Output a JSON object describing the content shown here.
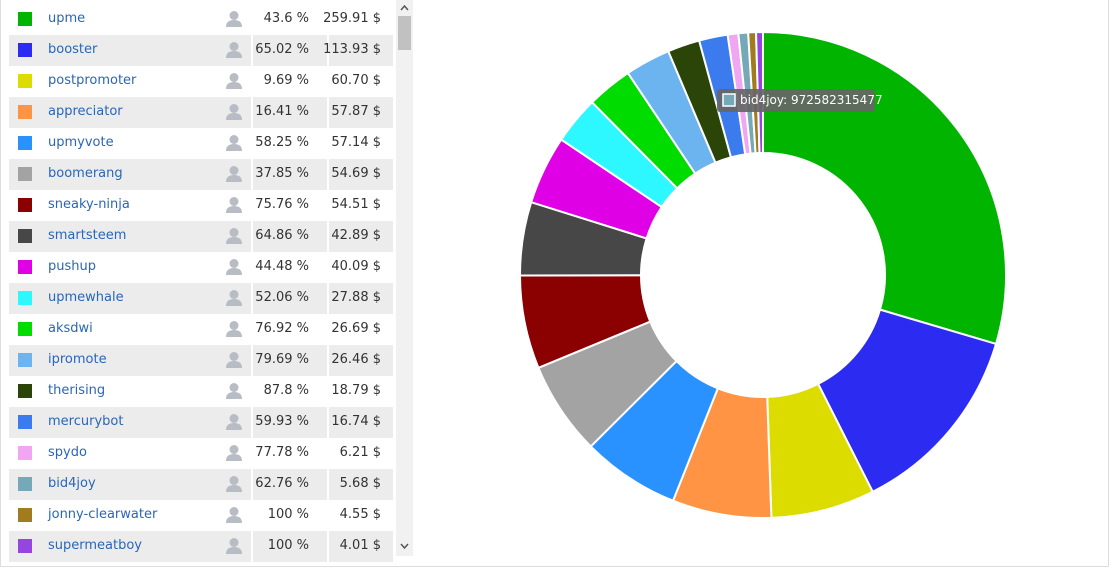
{
  "table": {
    "rows": [
      {
        "name": "upme",
        "color": "#00b400",
        "percent": "43.6 %",
        "amount": {
          "value": 259.91,
          "label": "259.91 $"
        }
      },
      {
        "name": "booster",
        "color": "#2b2bf2",
        "percent": "65.02 %",
        "amount": {
          "value": 113.93,
          "label": "113.93 $"
        }
      },
      {
        "name": "postpromoter",
        "color": "#dcdc00",
        "percent": "9.69 %",
        "amount": {
          "value": 60.7,
          "label": "60.70 $"
        }
      },
      {
        "name": "appreciator",
        "color": "#ff9544",
        "percent": "16.41 %",
        "amount": {
          "value": 57.87,
          "label": "57.87 $"
        }
      },
      {
        "name": "upmyvote",
        "color": "#2a92ff",
        "percent": "58.25 %",
        "amount": {
          "value": 57.14,
          "label": "57.14 $"
        }
      },
      {
        "name": "boomerang",
        "color": "#a3a3a3",
        "percent": "37.85 %",
        "amount": {
          "value": 54.69,
          "label": "54.69 $"
        }
      },
      {
        "name": "sneaky-ninja",
        "color": "#8b0000",
        "percent": "75.76 %",
        "amount": {
          "value": 54.51,
          "label": "54.51 $"
        }
      },
      {
        "name": "smartsteem",
        "color": "#474747",
        "percent": "64.86 %",
        "amount": {
          "value": 42.89,
          "label": "42.89 $"
        }
      },
      {
        "name": "pushup",
        "color": "#e000e6",
        "percent": "44.48 %",
        "amount": {
          "value": 40.09,
          "label": "40.09 $"
        }
      },
      {
        "name": "upmewhale",
        "color": "#2ef8ff",
        "percent": "52.06 %",
        "amount": {
          "value": 27.88,
          "label": "27.88 $"
        }
      },
      {
        "name": "aksdwi",
        "color": "#00dc00",
        "percent": "76.92 %",
        "amount": {
          "value": 26.69,
          "label": "26.69 $"
        }
      },
      {
        "name": "ipromote",
        "color": "#6cb4f0",
        "percent": "79.69 %",
        "amount": {
          "value": 26.46,
          "label": "26.46 $"
        }
      },
      {
        "name": "therising",
        "color": "#2b4508",
        "percent": "87.8 %",
        "amount": {
          "value": 18.79,
          "label": "18.79 $"
        }
      },
      {
        "name": "mercurybot",
        "color": "#3b7bee",
        "percent": "59.93 %",
        "amount": {
          "value": 16.74,
          "label": "16.74 $"
        }
      },
      {
        "name": "spydo",
        "color": "#f0a6f2",
        "percent": "77.78 %",
        "amount": {
          "value": 6.21,
          "label": "6.21 $"
        }
      },
      {
        "name": "bid4joy",
        "color": "#76a9b8",
        "percent": "62.76 %",
        "amount": {
          "value": 5.68,
          "label": "5.68 $"
        }
      },
      {
        "name": "jonny-clearwater",
        "color": "#a07c1e",
        "percent": "100 %",
        "amount": {
          "value": 4.55,
          "label": "4.55 $"
        }
      },
      {
        "name": "supermeatboy",
        "color": "#9646e0",
        "percent": "100 %",
        "amount": {
          "value": 4.01,
          "label": "4.01 $"
        }
      }
    ]
  },
  "tooltip": {
    "text": "bid4joy: 972582315477",
    "color": "#76a9b8"
  }
}
